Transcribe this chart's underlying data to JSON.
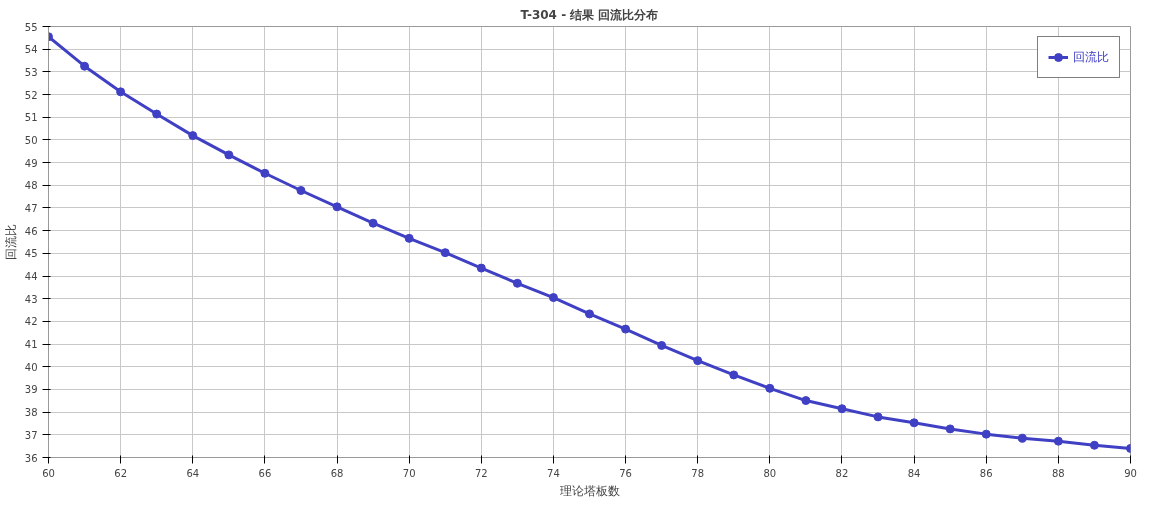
{
  "chart_data": {
    "type": "line",
    "title": "T-304 - 结果 回流比分布",
    "xlabel": "理论塔板数",
    "ylabel": "回流比",
    "x": [
      60,
      61,
      62,
      63,
      64,
      65,
      66,
      67,
      68,
      69,
      70,
      71,
      72,
      73,
      74,
      75,
      76,
      77,
      78,
      79,
      80,
      81,
      82,
      83,
      84,
      85,
      86,
      87,
      88,
      89,
      90
    ],
    "series": [
      {
        "name": "回流比",
        "color": "#4040c4",
        "values": [
          54.55,
          53.25,
          52.12,
          51.14,
          50.19,
          49.34,
          48.53,
          47.77,
          47.05,
          46.33,
          45.66,
          45.03,
          44.35,
          43.68,
          43.05,
          42.33,
          41.66,
          40.94,
          40.27,
          39.64,
          39.05,
          38.51,
          38.15,
          37.79,
          37.53,
          37.26,
          37.03,
          36.85,
          36.72,
          36.54,
          36.4
        ]
      }
    ],
    "xlim": [
      60,
      90
    ],
    "ylim": [
      36,
      55
    ],
    "xticks": [
      60,
      62,
      64,
      66,
      68,
      70,
      72,
      74,
      76,
      78,
      80,
      82,
      84,
      86,
      88,
      90
    ],
    "yticks": [
      36,
      37,
      38,
      39,
      40,
      41,
      42,
      43,
      44,
      45,
      46,
      47,
      48,
      49,
      50,
      51,
      52,
      53,
      54,
      55
    ],
    "grid": true,
    "legend": "top right",
    "marker": "circle",
    "line_style": "solid"
  }
}
